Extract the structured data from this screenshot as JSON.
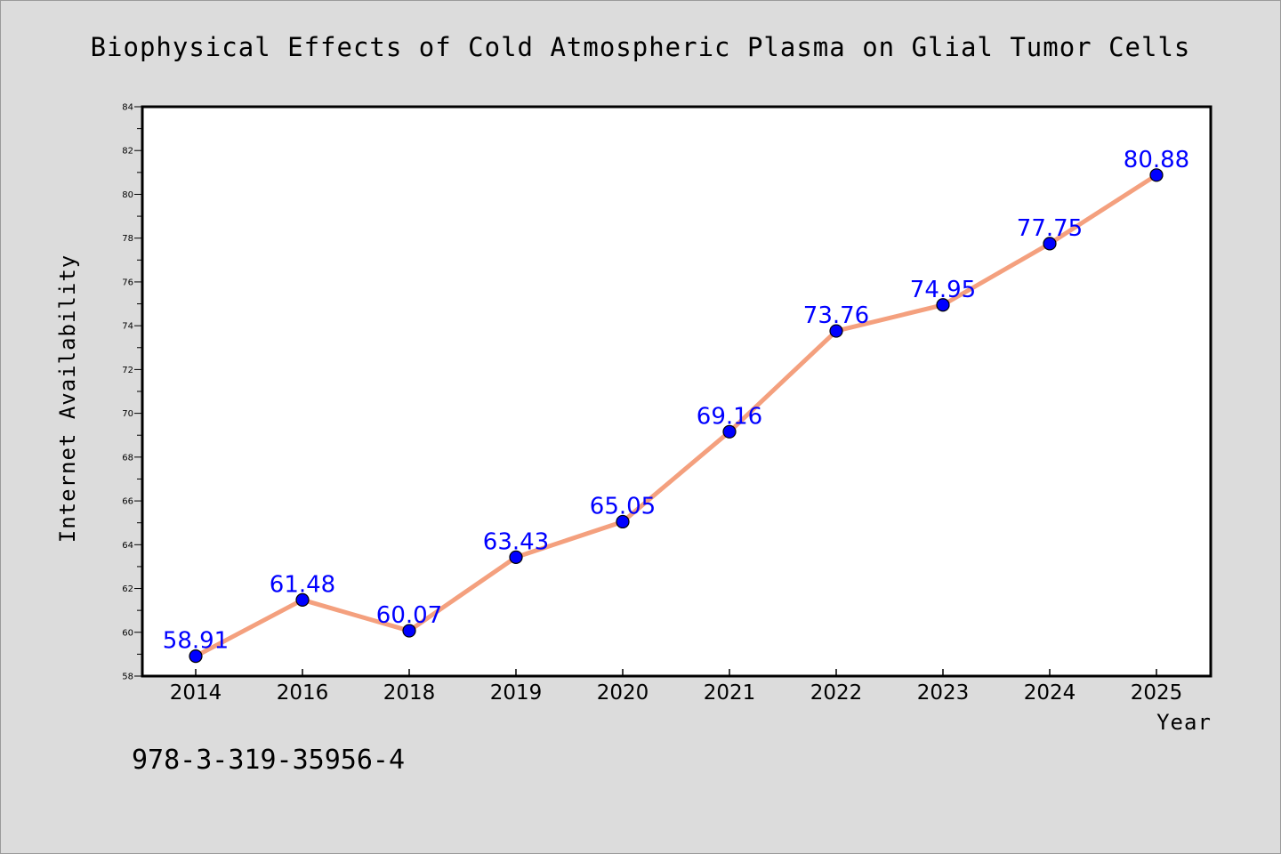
{
  "chart_data": {
    "type": "line",
    "title": "Biophysical Effects of Cold Atmospheric Plasma on Glial Tumor Cells",
    "xlabel": "Year",
    "ylabel": "Internet Availability",
    "categories": [
      "2014",
      "2016",
      "2018",
      "2019",
      "2020",
      "2021",
      "2022",
      "2023",
      "2024",
      "2025"
    ],
    "values": [
      58.91,
      61.48,
      60.07,
      63.43,
      65.05,
      69.16,
      73.76,
      74.95,
      77.75,
      80.88
    ],
    "data_labels": [
      "58.91",
      "61.48",
      "60.07",
      "63.43",
      "65.05",
      "69.16",
      "73.76",
      "74.95",
      "77.75",
      "80.88"
    ],
    "ylim": [
      58,
      84
    ],
    "yticks": [
      58,
      60,
      62,
      64,
      66,
      68,
      70,
      72,
      74,
      76,
      78,
      80,
      82,
      84
    ],
    "grid": false,
    "legend": "none",
    "colors": {
      "line": "#f4a07e",
      "marker": "#0000ff",
      "label": "#0000ff"
    }
  },
  "footnote": "978-3-319-35956-4"
}
